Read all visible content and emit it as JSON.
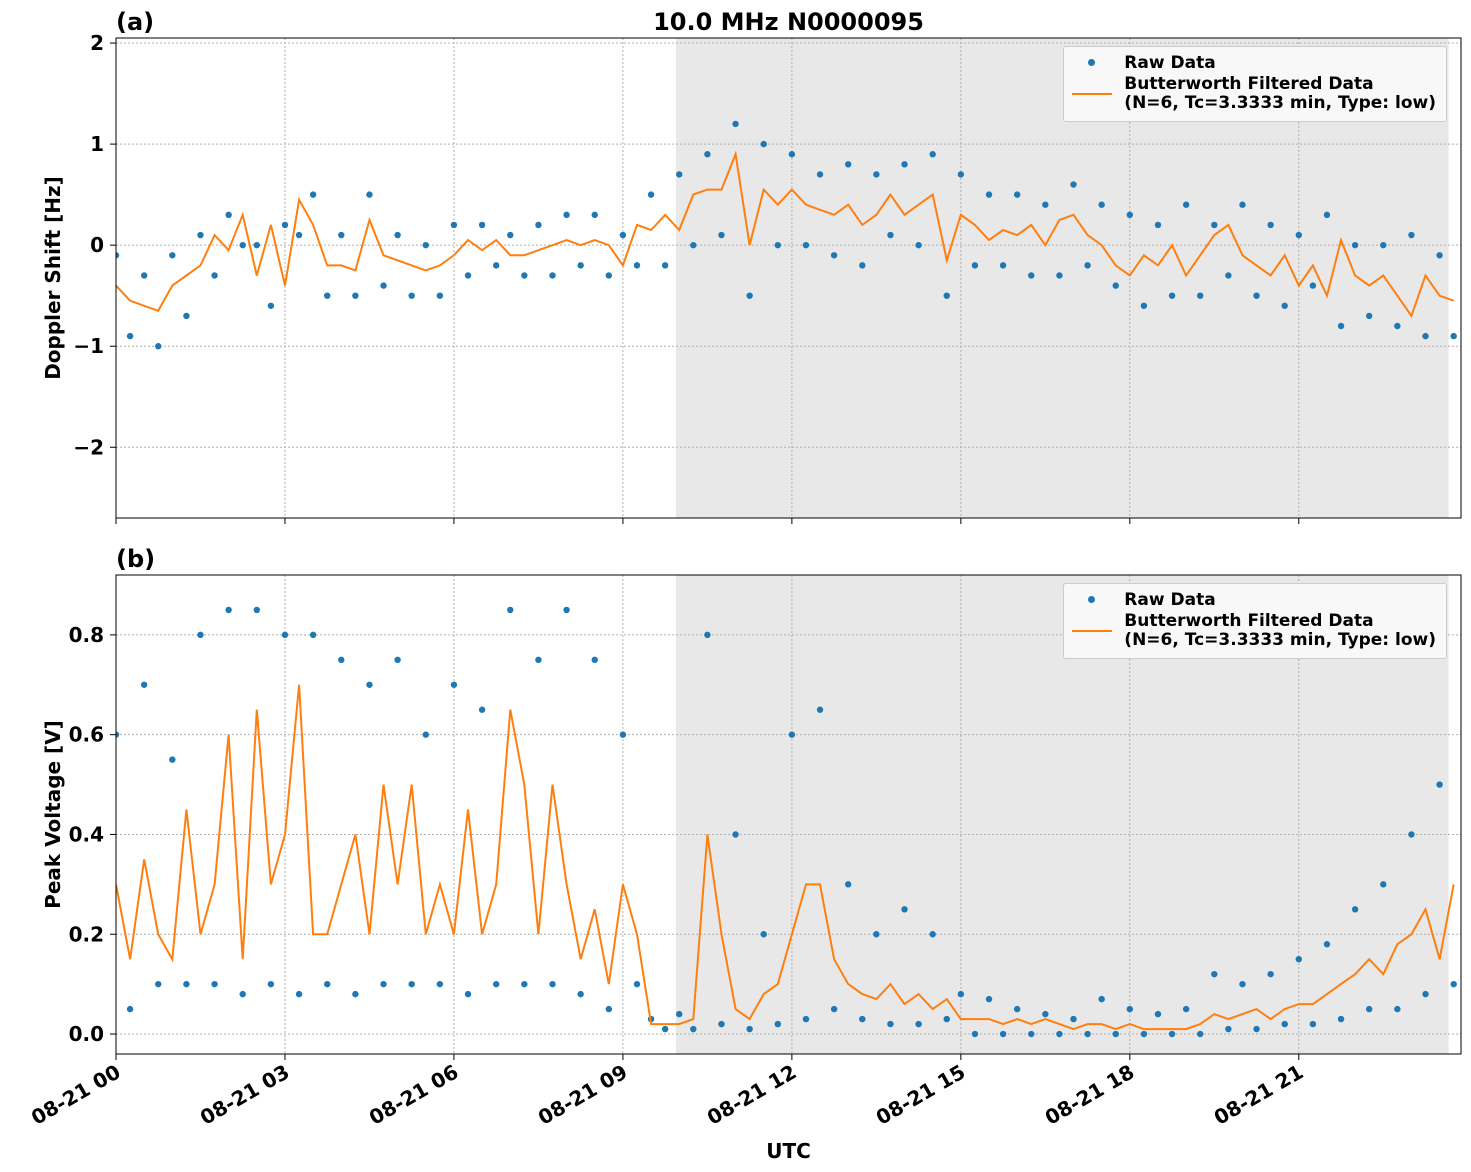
{
  "chart_data": [
    {
      "type": "scatter_line",
      "panel_label": "(a)",
      "title": "10.0 MHz N0000095",
      "ylabel": "Doppler Shift [Hz]",
      "x": [
        0,
        0.25,
        0.5,
        0.75,
        1,
        1.25,
        1.5,
        1.75,
        2,
        2.25,
        2.5,
        2.75,
        3,
        3.25,
        3.5,
        3.75,
        4,
        4.25,
        4.5,
        4.75,
        5,
        5.25,
        5.5,
        5.75,
        6,
        6.25,
        6.5,
        6.75,
        7,
        7.25,
        7.5,
        7.75,
        8,
        8.25,
        8.5,
        8.75,
        9,
        9.25,
        9.5,
        9.75,
        10,
        10.25,
        10.5,
        10.75,
        11,
        11.25,
        11.5,
        11.75,
        12,
        12.25,
        12.5,
        12.75,
        13,
        13.25,
        13.5,
        13.75,
        14,
        14.25,
        14.5,
        14.75,
        15,
        15.25,
        15.5,
        15.75,
        16,
        16.25,
        16.5,
        16.75,
        17,
        17.25,
        17.5,
        17.75,
        18,
        18.25,
        18.5,
        18.75,
        19,
        19.25,
        19.5,
        19.75,
        20,
        20.25,
        20.5,
        20.75,
        21,
        21.25,
        21.5,
        21.75,
        22,
        22.25,
        22.5,
        22.75,
        23,
        23.25,
        23.5,
        23.75
      ],
      "series": [
        {
          "name": "Raw Data",
          "kind": "points",
          "color": "#1f77b4",
          "values": [
            -0.1,
            -0.9,
            -0.3,
            -1.0,
            -0.1,
            -0.7,
            0.1,
            -0.3,
            0.3,
            0.0,
            0.0,
            -0.6,
            0.2,
            0.1,
            0.5,
            -0.5,
            0.1,
            -0.5,
            0.5,
            -0.4,
            0.1,
            -0.5,
            0.0,
            -0.5,
            0.2,
            -0.3,
            0.2,
            -0.2,
            0.1,
            -0.3,
            0.2,
            -0.3,
            0.3,
            -0.2,
            0.3,
            -0.3,
            0.1,
            -0.2,
            0.5,
            -0.2,
            0.7,
            0.0,
            0.9,
            0.1,
            1.2,
            -0.5,
            1.0,
            0.0,
            0.9,
            0.0,
            0.7,
            -0.1,
            0.8,
            -0.2,
            0.7,
            0.1,
            0.8,
            0.0,
            0.9,
            -0.5,
            0.7,
            -0.2,
            0.5,
            -0.2,
            0.5,
            -0.3,
            0.4,
            -0.3,
            0.6,
            -0.2,
            0.4,
            -0.4,
            0.3,
            -0.6,
            0.2,
            -0.5,
            0.4,
            -0.5,
            0.2,
            -0.3,
            0.4,
            -0.5,
            0.2,
            -0.6,
            0.1,
            -0.4,
            0.3,
            -0.8,
            0.0,
            -0.7,
            0.0,
            -0.8,
            0.1,
            -0.9,
            -0.1,
            -0.9
          ]
        },
        {
          "name": "Butterworth Filtered Data\n(N=6, Tc=3.3333 min, Type: low)",
          "kind": "line",
          "color": "#ff7f0e",
          "values": [
            -0.4,
            -0.55,
            -0.6,
            -0.65,
            -0.4,
            -0.3,
            -0.2,
            0.1,
            -0.05,
            0.3,
            -0.3,
            0.2,
            -0.4,
            0.45,
            0.2,
            -0.2,
            -0.2,
            -0.25,
            0.25,
            -0.1,
            -0.15,
            -0.2,
            -0.25,
            -0.2,
            -0.1,
            0.05,
            -0.05,
            0.05,
            -0.1,
            -0.1,
            -0.05,
            0.0,
            0.05,
            0.0,
            0.05,
            0.0,
            -0.2,
            0.2,
            0.15,
            0.3,
            0.15,
            0.5,
            0.55,
            0.55,
            0.9,
            0.0,
            0.55,
            0.4,
            0.55,
            0.4,
            0.35,
            0.3,
            0.4,
            0.2,
            0.3,
            0.5,
            0.3,
            0.4,
            0.5,
            -0.15,
            0.3,
            0.2,
            0.05,
            0.15,
            0.1,
            0.2,
            0.0,
            0.25,
            0.3,
            0.1,
            0.0,
            -0.2,
            -0.3,
            -0.1,
            -0.2,
            0.0,
            -0.3,
            -0.1,
            0.1,
            0.2,
            -0.1,
            -0.2,
            -0.3,
            -0.1,
            -0.4,
            -0.2,
            -0.5,
            0.05,
            -0.3,
            -0.4,
            -0.3,
            -0.5,
            -0.7,
            -0.3,
            -0.5,
            -0.55
          ]
        }
      ],
      "shaded_span": [
        9.94,
        23.66
      ],
      "xlim": [
        0,
        23.88
      ],
      "xticks": [
        0,
        3,
        6,
        9,
        12,
        15,
        18,
        21
      ],
      "ylim": [
        -2.7,
        2.05
      ],
      "yticks": [
        {
          "value": -2,
          "label": "−2"
        },
        {
          "value": -1,
          "label": "−1"
        },
        0,
        1,
        2
      ],
      "grid": true,
      "legend": "upper right"
    },
    {
      "type": "scatter_line",
      "panel_label": "(b)",
      "ylabel": "Peak Voltage [V]",
      "xlabel": "UTC",
      "x": [
        0,
        0.25,
        0.5,
        0.75,
        1,
        1.25,
        1.5,
        1.75,
        2,
        2.25,
        2.5,
        2.75,
        3,
        3.25,
        3.5,
        3.75,
        4,
        4.25,
        4.5,
        4.75,
        5,
        5.25,
        5.5,
        5.75,
        6,
        6.25,
        6.5,
        6.75,
        7,
        7.25,
        7.5,
        7.75,
        8,
        8.25,
        8.5,
        8.75,
        9,
        9.25,
        9.5,
        9.75,
        10,
        10.25,
        10.5,
        10.75,
        11,
        11.25,
        11.5,
        11.75,
        12,
        12.25,
        12.5,
        12.75,
        13,
        13.25,
        13.5,
        13.75,
        14,
        14.25,
        14.5,
        14.75,
        15,
        15.25,
        15.5,
        15.75,
        16,
        16.25,
        16.5,
        16.75,
        17,
        17.25,
        17.5,
        17.75,
        18,
        18.25,
        18.5,
        18.75,
        19,
        19.25,
        19.5,
        19.75,
        20,
        20.25,
        20.5,
        20.75,
        21,
        21.25,
        21.5,
        21.75,
        22,
        22.25,
        22.5,
        22.75,
        23,
        23.25,
        23.5,
        23.75
      ],
      "series": [
        {
          "name": "Raw Data",
          "kind": "points",
          "color": "#1f77b4",
          "values": [
            0.6,
            0.05,
            0.7,
            0.1,
            0.55,
            0.1,
            0.8,
            0.1,
            0.85,
            0.08,
            0.85,
            0.1,
            0.8,
            0.08,
            0.8,
            0.1,
            0.75,
            0.08,
            0.7,
            0.1,
            0.75,
            0.1,
            0.6,
            0.1,
            0.7,
            0.08,
            0.65,
            0.1,
            0.85,
            0.1,
            0.75,
            0.1,
            0.85,
            0.08,
            0.75,
            0.05,
            0.6,
            0.1,
            0.03,
            0.01,
            0.04,
            0.01,
            0.8,
            0.02,
            0.4,
            0.01,
            0.2,
            0.02,
            0.6,
            0.03,
            0.65,
            0.05,
            0.3,
            0.03,
            0.2,
            0.02,
            0.25,
            0.02,
            0.2,
            0.03,
            0.08,
            0.0,
            0.07,
            0.0,
            0.05,
            0.0,
            0.04,
            0.0,
            0.03,
            0.0,
            0.07,
            0.0,
            0.05,
            0.0,
            0.04,
            0.0,
            0.05,
            0.0,
            0.12,
            0.01,
            0.1,
            0.01,
            0.12,
            0.02,
            0.15,
            0.02,
            0.18,
            0.03,
            0.25,
            0.05,
            0.3,
            0.05,
            0.4,
            0.08,
            0.5,
            0.1
          ]
        },
        {
          "name": "Butterworth Filtered Data\n(N=6, Tc=3.3333 min, Type: low)",
          "kind": "line",
          "color": "#ff7f0e",
          "values": [
            0.3,
            0.15,
            0.35,
            0.2,
            0.15,
            0.45,
            0.2,
            0.3,
            0.6,
            0.15,
            0.65,
            0.3,
            0.4,
            0.7,
            0.2,
            0.2,
            0.3,
            0.4,
            0.2,
            0.5,
            0.3,
            0.5,
            0.2,
            0.3,
            0.2,
            0.45,
            0.2,
            0.3,
            0.65,
            0.5,
            0.2,
            0.5,
            0.3,
            0.15,
            0.25,
            0.1,
            0.3,
            0.2,
            0.02,
            0.02,
            0.02,
            0.03,
            0.4,
            0.2,
            0.05,
            0.03,
            0.08,
            0.1,
            0.2,
            0.3,
            0.3,
            0.15,
            0.1,
            0.08,
            0.07,
            0.1,
            0.06,
            0.08,
            0.05,
            0.07,
            0.03,
            0.03,
            0.03,
            0.02,
            0.03,
            0.02,
            0.03,
            0.02,
            0.01,
            0.02,
            0.02,
            0.01,
            0.02,
            0.01,
            0.01,
            0.01,
            0.01,
            0.02,
            0.04,
            0.03,
            0.04,
            0.05,
            0.03,
            0.05,
            0.06,
            0.06,
            0.08,
            0.1,
            0.12,
            0.15,
            0.12,
            0.18,
            0.2,
            0.25,
            0.15,
            0.3
          ]
        }
      ],
      "shaded_span": [
        9.94,
        23.66
      ],
      "xlim": [
        0,
        23.88
      ],
      "xticks": [
        {
          "value": 0,
          "label": "08-21 00"
        },
        {
          "value": 3,
          "label": "08-21 03"
        },
        {
          "value": 6,
          "label": "08-21 06"
        },
        {
          "value": 9,
          "label": "08-21 09"
        },
        {
          "value": 12,
          "label": "08-21 12"
        },
        {
          "value": 15,
          "label": "08-21 15"
        },
        {
          "value": 18,
          "label": "08-21 18"
        },
        {
          "value": 21,
          "label": "08-21 21"
        }
      ],
      "ylim": [
        -0.04,
        0.92
      ],
      "yticks": [
        {
          "value": 0,
          "label": "0.0"
        },
        0.2,
        0.4,
        0.6,
        0.8
      ],
      "grid": true,
      "legend": "upper right"
    }
  ]
}
